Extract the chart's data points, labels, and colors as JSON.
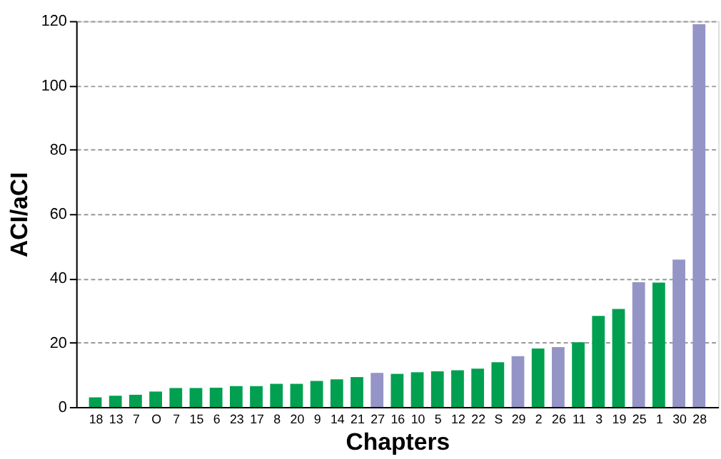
{
  "chart_data": {
    "type": "bar",
    "xlabel": "Chapters",
    "ylabel": "ACI/aCI",
    "categories": [
      "18",
      "13",
      "7",
      "O",
      "7",
      "15",
      "6",
      "23",
      "17",
      "8",
      "20",
      "9",
      "14",
      "21",
      "27",
      "16",
      "10",
      "5",
      "12",
      "22",
      "S",
      "29",
      "2",
      "26",
      "11",
      "3",
      "19",
      "25",
      "1",
      "30",
      "28"
    ],
    "values": [
      3.0,
      3.5,
      3.8,
      4.8,
      5.9,
      5.9,
      6.0,
      6.5,
      6.5,
      7.2,
      7.2,
      8.1,
      8.6,
      9.3,
      10.6,
      10.3,
      10.8,
      11.1,
      11.4,
      11.9,
      13.9,
      15.8,
      18.2,
      18.6,
      20.1,
      28.3,
      30.5,
      38.8,
      38.7,
      45.8,
      119
    ],
    "colors": [
      "#00a050",
      "#00a050",
      "#00a050",
      "#00a050",
      "#00a050",
      "#00a050",
      "#00a050",
      "#00a050",
      "#00a050",
      "#00a050",
      "#00a050",
      "#00a050",
      "#00a050",
      "#00a050",
      "#9494c6",
      "#00a050",
      "#00a050",
      "#00a050",
      "#00a050",
      "#00a050",
      "#00a050",
      "#9494c6",
      "#00a050",
      "#9494c6",
      "#00a050",
      "#00a050",
      "#00a050",
      "#9494c6",
      "#00a050",
      "#9494c6",
      "#9494c6"
    ],
    "ylim": [
      0,
      120
    ],
    "yticks": [
      0,
      20,
      40,
      60,
      80,
      100,
      120
    ],
    "grid": "y"
  }
}
